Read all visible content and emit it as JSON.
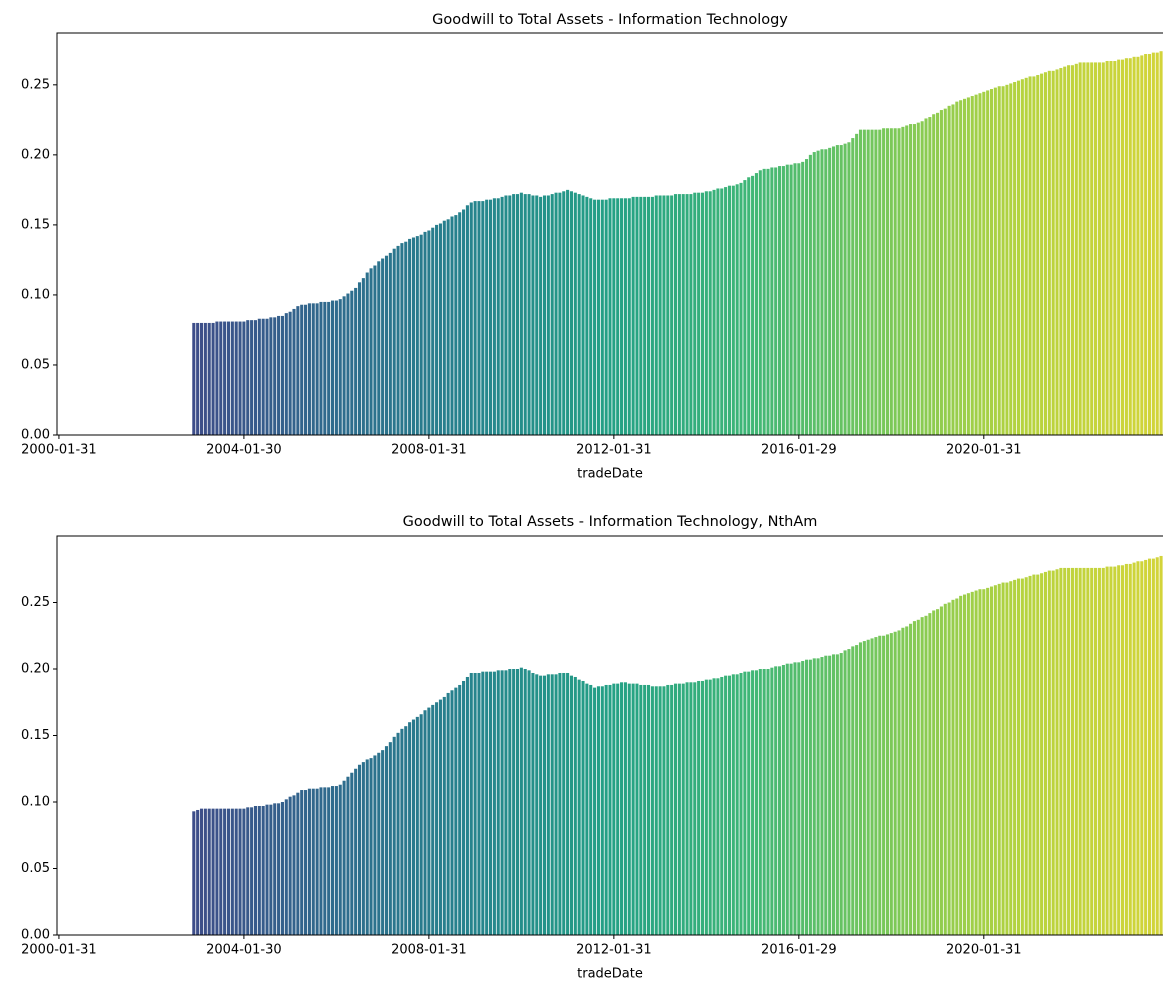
{
  "chart_data": [
    {
      "type": "bar",
      "title": "Goodwill to Total Assets - Information Technology",
      "xlabel": "tradeDate",
      "categories": [
        "2000-01-31",
        null,
        null,
        null,
        null,
        null,
        null,
        null,
        null,
        null,
        null,
        null,
        null,
        null,
        null,
        null,
        null,
        null,
        null,
        null,
        null,
        null,
        null,
        null,
        null,
        null,
        null,
        null,
        null,
        null,
        null,
        null,
        null,
        null,
        null,
        null,
        null,
        null,
        null,
        null,
        null,
        null,
        null,
        null,
        null,
        null,
        null,
        null,
        "2004-01-30",
        null,
        null,
        null,
        null,
        null,
        null,
        null,
        null,
        null,
        null,
        null,
        null,
        null,
        null,
        null,
        null,
        null,
        null,
        null,
        null,
        null,
        null,
        null,
        null,
        null,
        null,
        null,
        null,
        null,
        null,
        null,
        null,
        null,
        null,
        null,
        null,
        null,
        null,
        null,
        null,
        null,
        null,
        null,
        null,
        null,
        null,
        null,
        "2008-01-31",
        null,
        null,
        null,
        null,
        null,
        null,
        null,
        null,
        null,
        null,
        null,
        null,
        null,
        null,
        null,
        null,
        null,
        null,
        null,
        null,
        null,
        null,
        null,
        null,
        null,
        null,
        null,
        null,
        null,
        null,
        null,
        null,
        null,
        null,
        null,
        null,
        null,
        null,
        null,
        null,
        null,
        null,
        null,
        null,
        null,
        null,
        null,
        "2012-01-31",
        null,
        null,
        null,
        null,
        null,
        null,
        null,
        null,
        null,
        null,
        null,
        null,
        null,
        null,
        null,
        null,
        null,
        null,
        null,
        null,
        null,
        null,
        null,
        null,
        null,
        null,
        null,
        null,
        null,
        null,
        null,
        null,
        null,
        null,
        null,
        null,
        null,
        null,
        null,
        null,
        null,
        null,
        null,
        null,
        null,
        null,
        null,
        "2016-01-29",
        null,
        null,
        null,
        null,
        null,
        null,
        null,
        null,
        null,
        null,
        null,
        null,
        null,
        null,
        null,
        null,
        null,
        null,
        null,
        null,
        null,
        null,
        null,
        null,
        null,
        null,
        null,
        null,
        null,
        null,
        null,
        null,
        null,
        null,
        null,
        null,
        null,
        null,
        null,
        null,
        null,
        null,
        null,
        null,
        null,
        null,
        null,
        "2020-01-31",
        null,
        null,
        null,
        null,
        null,
        null,
        null,
        null,
        null,
        null,
        null,
        null,
        null,
        null,
        null,
        null,
        null,
        null,
        null,
        null,
        null,
        null,
        null,
        null,
        null,
        null,
        null,
        null,
        null,
        null,
        null,
        null,
        null,
        null,
        null,
        null,
        null,
        null,
        null,
        null,
        null,
        null,
        null,
        null,
        null,
        null
      ],
      "values": [
        null,
        null,
        null,
        null,
        null,
        null,
        null,
        null,
        null,
        null,
        null,
        null,
        null,
        null,
        null,
        null,
        null,
        null,
        null,
        null,
        null,
        null,
        null,
        null,
        null,
        null,
        null,
        null,
        null,
        null,
        null,
        null,
        null,
        null,
        null,
        0.08,
        0.08,
        0.08,
        0.08,
        0.08,
        0.08,
        0.081,
        0.081,
        0.081,
        0.081,
        0.081,
        0.081,
        0.081,
        0.081,
        0.082,
        0.082,
        0.082,
        0.083,
        0.083,
        0.083,
        0.084,
        0.084,
        0.085,
        0.085,
        0.087,
        0.088,
        0.09,
        0.092,
        0.093,
        0.093,
        0.094,
        0.094,
        0.094,
        0.095,
        0.095,
        0.095,
        0.096,
        0.096,
        0.097,
        0.099,
        0.101,
        0.103,
        0.105,
        0.109,
        0.112,
        0.116,
        0.119,
        0.121,
        0.124,
        0.126,
        0.128,
        0.13,
        0.133,
        0.135,
        0.137,
        0.138,
        0.14,
        0.141,
        0.142,
        0.143,
        0.145,
        0.146,
        0.148,
        0.15,
        0.151,
        0.153,
        0.154,
        0.156,
        0.157,
        0.159,
        0.161,
        0.164,
        0.166,
        0.167,
        0.167,
        0.167,
        0.168,
        0.168,
        0.169,
        0.169,
        0.17,
        0.171,
        0.171,
        0.172,
        0.172,
        0.173,
        0.172,
        0.172,
        0.171,
        0.171,
        0.17,
        0.171,
        0.171,
        0.172,
        0.173,
        0.173,
        0.174,
        0.175,
        0.174,
        0.173,
        0.172,
        0.171,
        0.17,
        0.169,
        0.168,
        0.168,
        0.168,
        0.168,
        0.169,
        0.169,
        0.169,
        0.169,
        0.169,
        0.169,
        0.17,
        0.17,
        0.17,
        0.17,
        0.17,
        0.17,
        0.171,
        0.171,
        0.171,
        0.171,
        0.171,
        0.172,
        0.172,
        0.172,
        0.172,
        0.172,
        0.173,
        0.173,
        0.173,
        0.174,
        0.174,
        0.175,
        0.176,
        0.176,
        0.177,
        0.178,
        0.178,
        0.179,
        0.18,
        0.182,
        0.184,
        0.185,
        0.187,
        0.189,
        0.19,
        0.19,
        0.191,
        0.191,
        0.192,
        0.192,
        0.193,
        0.193,
        0.194,
        0.194,
        0.195,
        0.197,
        0.2,
        0.202,
        0.203,
        0.204,
        0.204,
        0.205,
        0.206,
        0.207,
        0.207,
        0.208,
        0.209,
        0.212,
        0.215,
        0.218,
        0.218,
        0.218,
        0.218,
        0.218,
        0.218,
        0.219,
        0.219,
        0.219,
        0.219,
        0.219,
        0.22,
        0.221,
        0.222,
        0.222,
        0.223,
        0.224,
        0.226,
        0.227,
        0.229,
        0.23,
        0.232,
        0.233,
        0.235,
        0.236,
        0.238,
        0.239,
        0.24,
        0.241,
        0.242,
        0.243,
        0.244,
        0.245,
        0.246,
        0.247,
        0.248,
        0.249,
        0.249,
        0.25,
        0.251,
        0.252,
        0.253,
        0.254,
        0.255,
        0.256,
        0.256,
        0.257,
        0.258,
        0.259,
        0.26,
        0.26,
        0.261,
        0.262,
        0.263,
        0.264,
        0.264,
        0.265,
        0.266,
        0.266,
        0.266,
        0.266,
        0.266,
        0.266,
        0.266,
        0.267,
        0.267,
        0.267,
        0.268,
        0.268,
        0.269,
        0.269,
        0.27,
        0.27,
        0.271,
        0.272,
        0.272,
        0.273,
        0.273,
        0.274
      ],
      "palette": [
        "#45327a",
        "#3d4e89",
        "#2f6b8d",
        "#26848d",
        "#23a085",
        "#3fb677",
        "#79c85a",
        "#b6d33e",
        "#d3d43a"
      ],
      "ylim": [
        0,
        0.287
      ],
      "yticks": [
        {
          "value": 0,
          "label": "0.00"
        },
        {
          "value": 0.05,
          "label": "0.05"
        },
        {
          "value": 0.1,
          "label": "0.10"
        },
        {
          "value": 0.15,
          "label": "0.15"
        },
        {
          "value": 0.2,
          "label": "0.20"
        },
        {
          "value": 0.25,
          "label": "0.25"
        }
      ]
    },
    {
      "type": "bar",
      "title": "Goodwill to Total Assets - Information Technology, NthAm",
      "xlabel": "tradeDate",
      "categories": [
        "2000-01-31",
        null,
        null,
        null,
        null,
        null,
        null,
        null,
        null,
        null,
        null,
        null,
        null,
        null,
        null,
        null,
        null,
        null,
        null,
        null,
        null,
        null,
        null,
        null,
        null,
        null,
        null,
        null,
        null,
        null,
        null,
        null,
        null,
        null,
        null,
        null,
        null,
        null,
        null,
        null,
        null,
        null,
        null,
        null,
        null,
        null,
        null,
        null,
        "2004-01-30",
        null,
        null,
        null,
        null,
        null,
        null,
        null,
        null,
        null,
        null,
        null,
        null,
        null,
        null,
        null,
        null,
        null,
        null,
        null,
        null,
        null,
        null,
        null,
        null,
        null,
        null,
        null,
        null,
        null,
        null,
        null,
        null,
        null,
        null,
        null,
        null,
        null,
        null,
        null,
        null,
        null,
        null,
        null,
        null,
        null,
        null,
        null,
        "2008-01-31",
        null,
        null,
        null,
        null,
        null,
        null,
        null,
        null,
        null,
        null,
        null,
        null,
        null,
        null,
        null,
        null,
        null,
        null,
        null,
        null,
        null,
        null,
        null,
        null,
        null,
        null,
        null,
        null,
        null,
        null,
        null,
        null,
        null,
        null,
        null,
        null,
        null,
        null,
        null,
        null,
        null,
        null,
        null,
        null,
        null,
        null,
        null,
        "2012-01-31",
        null,
        null,
        null,
        null,
        null,
        null,
        null,
        null,
        null,
        null,
        null,
        null,
        null,
        null,
        null,
        null,
        null,
        null,
        null,
        null,
        null,
        null,
        null,
        null,
        null,
        null,
        null,
        null,
        null,
        null,
        null,
        null,
        null,
        null,
        null,
        null,
        null,
        null,
        null,
        null,
        null,
        null,
        null,
        null,
        null,
        null,
        null,
        "2016-01-29",
        null,
        null,
        null,
        null,
        null,
        null,
        null,
        null,
        null,
        null,
        null,
        null,
        null,
        null,
        null,
        null,
        null,
        null,
        null,
        null,
        null,
        null,
        null,
        null,
        null,
        null,
        null,
        null,
        null,
        null,
        null,
        null,
        null,
        null,
        null,
        null,
        null,
        null,
        null,
        null,
        null,
        null,
        null,
        null,
        null,
        null,
        null,
        "2020-01-31",
        null,
        null,
        null,
        null,
        null,
        null,
        null,
        null,
        null,
        null,
        null,
        null,
        null,
        null,
        null,
        null,
        null,
        null,
        null,
        null,
        null,
        null,
        null,
        null,
        null,
        null,
        null,
        null,
        null,
        null,
        null,
        null,
        null,
        null,
        null,
        null,
        null,
        null,
        null,
        null,
        null,
        null,
        null,
        null,
        null,
        null
      ],
      "values": [
        null,
        null,
        null,
        null,
        null,
        null,
        null,
        null,
        null,
        null,
        null,
        null,
        null,
        null,
        null,
        null,
        null,
        null,
        null,
        null,
        null,
        null,
        null,
        null,
        null,
        null,
        null,
        null,
        null,
        null,
        null,
        null,
        null,
        null,
        null,
        0.093,
        0.094,
        0.095,
        0.095,
        0.095,
        0.095,
        0.095,
        0.095,
        0.095,
        0.095,
        0.095,
        0.095,
        0.095,
        0.095,
        0.096,
        0.096,
        0.097,
        0.097,
        0.097,
        0.098,
        0.098,
        0.099,
        0.099,
        0.1,
        0.102,
        0.104,
        0.105,
        0.107,
        0.109,
        0.109,
        0.11,
        0.11,
        0.11,
        0.111,
        0.111,
        0.111,
        0.112,
        0.112,
        0.113,
        0.116,
        0.119,
        0.122,
        0.125,
        0.128,
        0.13,
        0.132,
        0.133,
        0.135,
        0.137,
        0.139,
        0.142,
        0.145,
        0.149,
        0.152,
        0.155,
        0.157,
        0.16,
        0.162,
        0.164,
        0.166,
        0.169,
        0.171,
        0.173,
        0.175,
        0.177,
        0.179,
        0.182,
        0.184,
        0.186,
        0.188,
        0.191,
        0.194,
        0.197,
        0.197,
        0.197,
        0.198,
        0.198,
        0.198,
        0.198,
        0.199,
        0.199,
        0.199,
        0.2,
        0.2,
        0.2,
        0.201,
        0.2,
        0.199,
        0.197,
        0.196,
        0.195,
        0.195,
        0.196,
        0.196,
        0.196,
        0.197,
        0.197,
        0.197,
        0.195,
        0.194,
        0.192,
        0.191,
        0.189,
        0.188,
        0.186,
        0.187,
        0.187,
        0.188,
        0.188,
        0.189,
        0.189,
        0.19,
        0.19,
        0.189,
        0.189,
        0.189,
        0.188,
        0.188,
        0.188,
        0.187,
        0.187,
        0.187,
        0.187,
        0.188,
        0.188,
        0.189,
        0.189,
        0.189,
        0.19,
        0.19,
        0.19,
        0.191,
        0.191,
        0.192,
        0.192,
        0.193,
        0.193,
        0.194,
        0.195,
        0.195,
        0.196,
        0.196,
        0.197,
        0.198,
        0.198,
        0.199,
        0.199,
        0.2,
        0.2,
        0.2,
        0.201,
        0.202,
        0.202,
        0.203,
        0.204,
        0.204,
        0.205,
        0.205,
        0.206,
        0.207,
        0.207,
        0.208,
        0.208,
        0.209,
        0.21,
        0.21,
        0.211,
        0.211,
        0.212,
        0.214,
        0.215,
        0.217,
        0.218,
        0.22,
        0.221,
        0.222,
        0.223,
        0.224,
        0.225,
        0.225,
        0.226,
        0.227,
        0.228,
        0.229,
        0.231,
        0.232,
        0.234,
        0.236,
        0.237,
        0.239,
        0.24,
        0.242,
        0.244,
        0.245,
        0.247,
        0.249,
        0.25,
        0.252,
        0.253,
        0.255,
        0.256,
        0.257,
        0.258,
        0.259,
        0.26,
        0.26,
        0.261,
        0.262,
        0.263,
        0.264,
        0.265,
        0.265,
        0.266,
        0.267,
        0.268,
        0.268,
        0.269,
        0.27,
        0.271,
        0.271,
        0.272,
        0.273,
        0.274,
        0.274,
        0.275,
        0.276,
        0.276,
        0.276,
        0.276,
        0.276,
        0.276,
        0.276,
        0.276,
        0.276,
        0.276,
        0.276,
        0.276,
        0.277,
        0.277,
        0.277,
        0.278,
        0.278,
        0.279,
        0.279,
        0.28,
        0.281,
        0.281,
        0.282,
        0.283,
        0.283,
        0.284,
        0.285
      ],
      "palette": [
        "#45327a",
        "#3d4e89",
        "#2f6b8d",
        "#26848d",
        "#23a085",
        "#3fb677",
        "#79c85a",
        "#b6d33e",
        "#d3d43a"
      ],
      "ylim": [
        0,
        0.3
      ],
      "yticks": [
        {
          "value": 0,
          "label": "0.00"
        },
        {
          "value": 0.05,
          "label": "0.05"
        },
        {
          "value": 0.1,
          "label": "0.10"
        },
        {
          "value": 0.15,
          "label": "0.15"
        },
        {
          "value": 0.2,
          "label": "0.20"
        },
        {
          "value": 0.25,
          "label": "0.25"
        }
      ]
    }
  ]
}
